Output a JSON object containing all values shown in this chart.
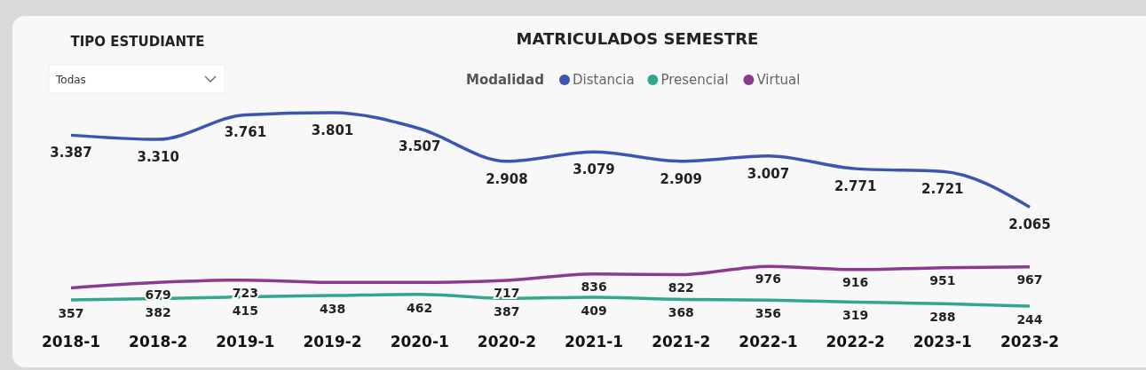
{
  "chart_data": {
    "type": "line",
    "title": "MATRICULADOS SEMESTRE",
    "legend_title": "Modalidad",
    "legend": "top",
    "marker": "none",
    "annotations": [
      "TIPO ESTUDIANTE",
      "Todas"
    ],
    "categories": [
      "2018-1",
      "2018-2",
      "2019-1",
      "2019-2",
      "2020-1",
      "2020-2",
      "2021-1",
      "2021-2",
      "2022-1",
      "2022-2",
      "2023-1",
      "2023-2"
    ],
    "series": [
      {
        "name": "Distancia",
        "color": "#3a55b4",
        "values": [
          3387,
          3310,
          3761,
          3801,
          3507,
          2908,
          3079,
          2909,
          3007,
          2771,
          2721,
          2065
        ],
        "value_labels": [
          "3.387",
          "3.310",
          "3.761",
          "3.801",
          "3.507",
          "2.908",
          "3.079",
          "2.909",
          "3.007",
          "2.771",
          "2.721",
          "2.065"
        ]
      },
      {
        "name": "Presencial",
        "color": "#2fa88e",
        "values": [
          357,
          382,
          415,
          438,
          462,
          387,
          409,
          368,
          356,
          319,
          288,
          244
        ],
        "value_labels": [
          "357",
          "382",
          "415",
          "438",
          "462",
          "387",
          "409",
          "368",
          "356",
          "319",
          "288",
          "244"
        ]
      },
      {
        "name": "Virtual",
        "color": "#8b3a8f",
        "values": [
          580,
          679,
          723,
          680,
          680,
          717,
          836,
          822,
          976,
          916,
          951,
          967
        ],
        "value_labels": [
          null,
          "679",
          "723",
          null,
          null,
          "717",
          "836",
          "822",
          "976",
          "916",
          "951",
          "967"
        ]
      }
    ]
  }
}
